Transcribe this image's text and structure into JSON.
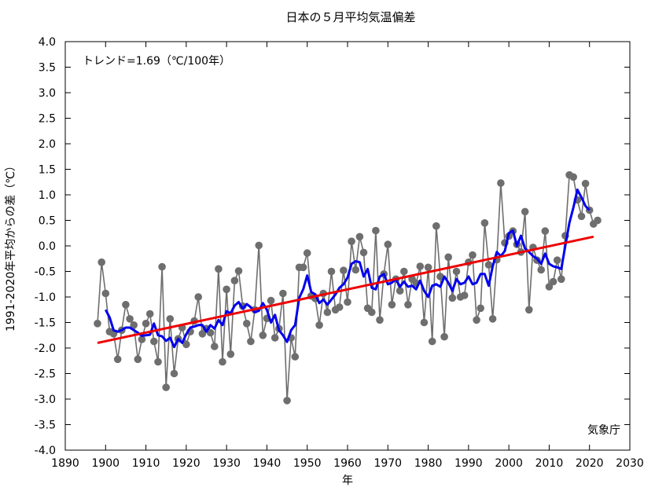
{
  "chart_data": {
    "type": "line",
    "title": "日本の５月平均気温偏差",
    "xlabel": "年",
    "ylabel": "1991-2020年平均からの差（℃）",
    "trend_label": "トレンド=1.69（℃/100年）",
    "source_label": "気象庁",
    "xlim": [
      1890,
      2030
    ],
    "ylim": [
      -4.0,
      4.0
    ],
    "x_ticks": [
      1890,
      1900,
      1910,
      1920,
      1930,
      1940,
      1950,
      1960,
      1970,
      1980,
      1990,
      2000,
      2010,
      2020,
      2030
    ],
    "y_ticks": [
      "4.0",
      "3.5",
      "3.0",
      "2.5",
      "2.0",
      "1.5",
      "1.0",
      "0.5",
      "0.0",
      "-0.5",
      "-1.0",
      "-1.5",
      "-2.0",
      "-2.5",
      "-3.0",
      "-3.5",
      "-4.0"
    ],
    "grid": false,
    "colors": {
      "annual": "#6e6e6e",
      "moving_average": "#0000ee",
      "trend": "#ee0000"
    },
    "series": [
      {
        "years": [
          1898,
          1899,
          1900,
          1901,
          1902,
          1903,
          1904,
          1905,
          1906,
          1907,
          1908,
          1909,
          1910,
          1911,
          1912,
          1913,
          1914,
          1915,
          1916,
          1917,
          1918,
          1919,
          1920,
          1921,
          1922,
          1923,
          1924,
          1925,
          1926,
          1927,
          1928,
          1929,
          1930,
          1931,
          1932,
          1933,
          1934,
          1935,
          1936,
          1937,
          1938,
          1939,
          1940,
          1941,
          1942,
          1943,
          1944,
          1945,
          1946,
          1947,
          1948,
          1949,
          1950,
          1951,
          1952,
          1953,
          1954,
          1955,
          1956,
          1957,
          1958,
          1959,
          1960,
          1961,
          1962,
          1963,
          1964,
          1965,
          1966,
          1967,
          1968,
          1969,
          1970,
          1971,
          1972,
          1973,
          1974,
          1975,
          1976,
          1977,
          1978,
          1979,
          1980,
          1981,
          1982,
          1983,
          1984,
          1985,
          1986,
          1987,
          1988,
          1989,
          1990,
          1991,
          1992,
          1993,
          1994,
          1995,
          1996,
          1997,
          1998,
          1999,
          2000,
          2001,
          2002,
          2003,
          2004,
          2005,
          2006,
          2007,
          2008,
          2009,
          2010,
          2011,
          2012,
          2013,
          2014,
          2015,
          2016,
          2017,
          2018,
          2019,
          2020,
          2021,
          2022
        ],
        "values": [
          -1.52,
          -0.32,
          -0.93,
          -1.68,
          -1.72,
          -2.22,
          -1.65,
          -1.15,
          -1.43,
          -1.55,
          -2.22,
          -1.83,
          -1.52,
          -1.33,
          -1.87,
          -2.27,
          -0.41,
          -2.77,
          -1.43,
          -2.5,
          -1.82,
          -1.6,
          -1.93,
          -1.68,
          -1.47,
          -1.0,
          -1.72,
          -1.62,
          -1.7,
          -1.97,
          -0.45,
          -2.27,
          -0.85,
          -2.12,
          -0.68,
          -0.49,
          -1.18,
          -1.52,
          -1.87,
          -1.25,
          0.01,
          -1.75,
          -1.42,
          -1.07,
          -1.8,
          -1.62,
          -0.93,
          -3.03,
          -1.8,
          -2.17,
          -0.42,
          -0.42,
          -0.14,
          -0.98,
          -1.03,
          -1.55,
          -0.93,
          -1.3,
          -0.5,
          -1.25,
          -1.2,
          -0.48,
          -1.1,
          0.09,
          -0.47,
          0.18,
          -0.13,
          -1.22,
          -1.3,
          0.3,
          -1.45,
          -0.55,
          0.03,
          -1.15,
          -0.65,
          -0.88,
          -0.5,
          -1.15,
          -0.65,
          -0.73,
          -0.4,
          -1.5,
          -0.42,
          -1.87,
          0.39,
          -0.6,
          -1.78,
          -0.22,
          -1.02,
          -0.5,
          -1.0,
          -0.97,
          -0.32,
          -0.18,
          -1.45,
          -1.22,
          0.45,
          -0.37,
          -1.43,
          -0.27,
          1.23,
          0.06,
          0.19,
          0.29,
          0.03,
          -0.12,
          0.67,
          -1.25,
          -0.03,
          -0.28,
          -0.47,
          0.29,
          -0.8,
          -0.7,
          -0.28,
          -0.65,
          0.2,
          1.39,
          1.35,
          0.9,
          0.58,
          1.22,
          0.7,
          0.43,
          0.5
        ]
      },
      {
        "years": [
          1900,
          1901,
          1902,
          1903,
          1904,
          1905,
          1906,
          1907,
          1908,
          1909,
          1910,
          1911,
          1912,
          1913,
          1914,
          1915,
          1916,
          1917,
          1918,
          1919,
          1920,
          1921,
          1922,
          1923,
          1924,
          1925,
          1926,
          1927,
          1928,
          1929,
          1930,
          1931,
          1932,
          1933,
          1934,
          1935,
          1936,
          1937,
          1938,
          1939,
          1940,
          1941,
          1942,
          1943,
          1944,
          1945,
          1946,
          1947,
          1948,
          1949,
          1950,
          1951,
          1952,
          1953,
          1954,
          1955,
          1956,
          1957,
          1958,
          1959,
          1960,
          1961,
          1962,
          1963,
          1964,
          1965,
          1966,
          1967,
          1968,
          1969,
          1970,
          1971,
          1972,
          1973,
          1974,
          1975,
          1976,
          1977,
          1978,
          1979,
          1980,
          1981,
          1982,
          1983,
          1984,
          1985,
          1986,
          1987,
          1988,
          1989,
          1990,
          1991,
          1992,
          1993,
          1994,
          1995,
          1996,
          1997,
          1998,
          1999,
          2000,
          2001,
          2002,
          2003,
          2004,
          2005,
          2006,
          2007,
          2008,
          2009,
          2010,
          2011,
          2012,
          2013,
          2014,
          2015,
          2016,
          2017,
          2018,
          2019,
          2020
        ],
        "values": [
          -1.25,
          -1.4,
          -1.65,
          -1.68,
          -1.65,
          -1.6,
          -1.6,
          -1.65,
          -1.7,
          -1.76,
          -1.75,
          -1.74,
          -1.52,
          -1.75,
          -1.77,
          -1.86,
          -1.8,
          -1.98,
          -1.82,
          -1.9,
          -1.73,
          -1.6,
          -1.58,
          -1.55,
          -1.55,
          -1.68,
          -1.55,
          -1.62,
          -1.45,
          -1.55,
          -1.28,
          -1.32,
          -1.17,
          -1.1,
          -1.23,
          -1.14,
          -1.2,
          -1.3,
          -1.27,
          -1.12,
          -1.25,
          -1.5,
          -1.35,
          -1.65,
          -1.75,
          -1.88,
          -1.65,
          -1.55,
          -1.02,
          -0.85,
          -0.58,
          -0.9,
          -0.95,
          -1.12,
          -1.05,
          -1.15,
          -1.05,
          -0.95,
          -0.82,
          -0.75,
          -0.62,
          -0.35,
          -0.3,
          -0.32,
          -0.6,
          -0.45,
          -0.82,
          -0.85,
          -0.6,
          -0.55,
          -0.75,
          -0.72,
          -0.65,
          -0.8,
          -0.7,
          -0.8,
          -0.78,
          -0.85,
          -0.68,
          -0.88,
          -1.0,
          -0.78,
          -0.75,
          -0.8,
          -0.6,
          -0.72,
          -0.88,
          -0.65,
          -0.75,
          -0.72,
          -0.6,
          -0.75,
          -0.72,
          -0.55,
          -0.55,
          -0.78,
          -0.4,
          -0.12,
          -0.2,
          -0.1,
          0.25,
          0.3,
          0.0,
          0.2,
          -0.05,
          -0.12,
          -0.2,
          -0.25,
          -0.35,
          -0.15,
          -0.35,
          -0.4,
          -0.42,
          -0.45,
          0.0,
          0.45,
          0.75,
          1.1,
          0.95,
          0.78,
          0.7
        ]
      },
      {
        "years": [
          1898,
          2021
        ],
        "values": [
          -1.9,
          0.18
        ]
      }
    ]
  }
}
